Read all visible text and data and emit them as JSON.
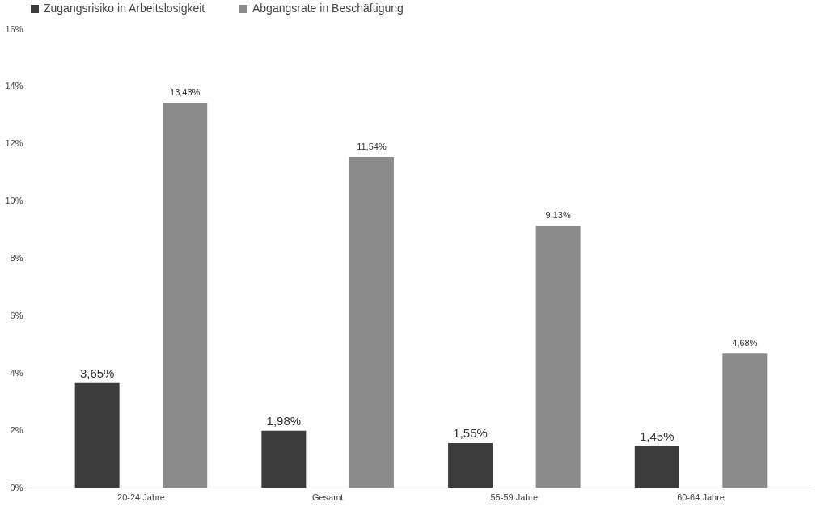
{
  "chart_data": {
    "type": "bar",
    "categories": [
      "20-24 Jahre",
      "Gesamt",
      "55-59 Jahre",
      "60-64 Jahre"
    ],
    "series": [
      {
        "name": "Zugangsrisiko in Arbeitslosigkeit",
        "color": "#3c3c3c",
        "values": [
          3.65,
          1.98,
          1.55,
          1.45
        ],
        "value_labels": [
          "3,65%",
          "1,98%",
          "1,55%",
          "1,45%"
        ]
      },
      {
        "name": "Abgangsrate in Beschäftigung",
        "color": "#8a8a8a",
        "values": [
          13.43,
          11.54,
          9.13,
          4.68
        ],
        "value_labels": [
          "13,43%",
          "11,54%",
          "9,13%",
          "4,68%"
        ]
      }
    ],
    "ylim": [
      0,
      16
    ],
    "yticks": [
      {
        "value": 0,
        "label": "0%"
      },
      {
        "value": 2,
        "label": "2%"
      },
      {
        "value": 4,
        "label": "4%"
      },
      {
        "value": 6,
        "label": "6%"
      },
      {
        "value": 8,
        "label": "8%"
      },
      {
        "value": 10,
        "label": "10%"
      },
      {
        "value": 12,
        "label": "12%"
      },
      {
        "value": 14,
        "label": "14%"
      },
      {
        "value": 16,
        "label": "16%"
      }
    ],
    "grid": false,
    "legend": "top"
  }
}
